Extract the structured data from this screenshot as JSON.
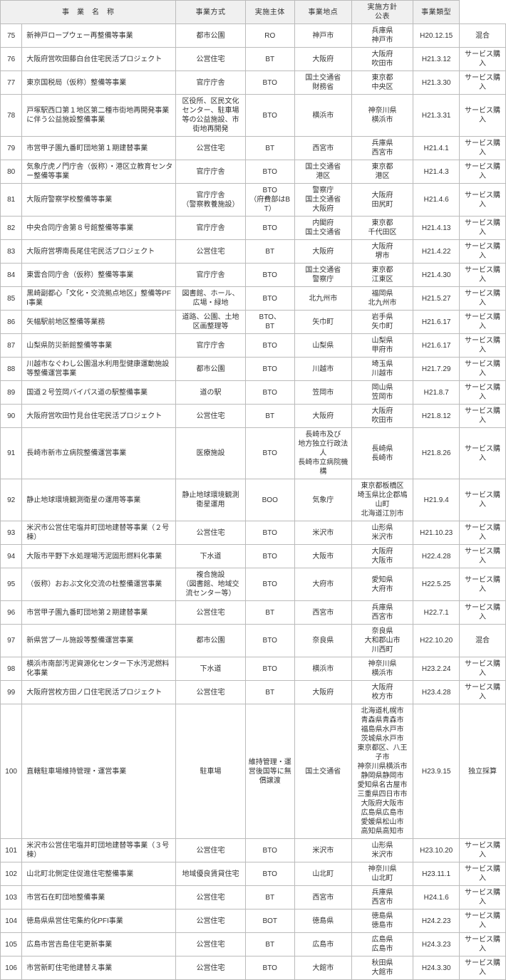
{
  "columns": [
    "",
    "事　業　名　称",
    "事業方式",
    "実施主体",
    "事業地点",
    "実施方針\n公表",
    "事業類型"
  ],
  "rows": [
    {
      "no": "75",
      "name": "新神戸ロープウェー再整備等事業",
      "m1": "都市公園",
      "m2": "RO",
      "m3": "神戸市",
      "m4": "兵庫県\n神戸市",
      "m5": "H20.12.15",
      "m6": "混合"
    },
    {
      "no": "76",
      "name": "大阪府営吹田藤白台住宅民活プロジェクト",
      "m1": "公営住宅",
      "m2": "BT",
      "m3": "大阪府",
      "m4": "大阪府\n吹田市",
      "m5": "H21.3.12",
      "m6": "サービス購入"
    },
    {
      "no": "77",
      "name": "東京国税局（仮称）整備等事業",
      "m1": "官庁庁舎",
      "m2": "BTO",
      "m3": "国土交通省\n財務省",
      "m4": "東京都\n中央区",
      "m5": "H21.3.30",
      "m6": "サービス購入"
    },
    {
      "no": "78",
      "name": "戸塚駅西口第１地区第二種市街地再開発事業に伴う公益施設整備事業",
      "m1": "区役所、区民文化センター、駐車場等の公益施設、市街地再開発",
      "m2": "BTO",
      "m3": "横浜市",
      "m4": "神奈川県\n横浜市",
      "m5": "H21.3.31",
      "m6": "サービス購入"
    },
    {
      "no": "79",
      "name": "市営甲子園九番町団地第１期建替事業",
      "m1": "公営住宅",
      "m2": "BT",
      "m3": "西宮市",
      "m4": "兵庫県\n西宮市",
      "m5": "H21.4.1",
      "m6": "サービス購入"
    },
    {
      "no": "80",
      "name": "気象庁虎ノ門庁舎（仮称）・港区立教育センター整備等事業",
      "m1": "官庁庁舎",
      "m2": "BTO",
      "m3": "国土交通省\n港区",
      "m4": "東京都\n港区",
      "m5": "H21.4.3",
      "m6": "サービス購入"
    },
    {
      "no": "81",
      "name": "大阪府警察学校整備等事業",
      "m1": "官庁庁舎\n（警察教養施設）",
      "m2": "BTO\n（府費部はBT）",
      "m3": "警察庁\n国土交通省\n大阪府",
      "m4": "大阪府\n田尻町",
      "m5": "H21.4.6",
      "m6": "サービス購入"
    },
    {
      "no": "82",
      "name": "中央合同庁舎第８号館整備等事業",
      "m1": "官庁庁舎",
      "m2": "BTO",
      "m3": "内閣府\n国土交通省",
      "m4": "東京都\n千代田区",
      "m5": "H21.4.13",
      "m6": "サービス購入"
    },
    {
      "no": "83",
      "name": "大阪府営堺南長尾住宅民活プロジェクト",
      "m1": "公営住宅",
      "m2": "BT",
      "m3": "大阪府",
      "m4": "大阪府\n堺市",
      "m5": "H21.4.22",
      "m6": "サービス購入"
    },
    {
      "no": "84",
      "name": "東雲合同庁舎（仮称）整備等事業",
      "m1": "官庁庁舎",
      "m2": "BTO",
      "m3": "国土交通省\n警察庁",
      "m4": "東京都\n江東区",
      "m5": "H21.4.30",
      "m6": "サービス購入"
    },
    {
      "no": "85",
      "name": "黒崎副都心「文化・交流拠点地区」整備等PFI事業",
      "m1": "図書館、ホール、\n広場・緑地",
      "m2": "BTO",
      "m3": "北九州市",
      "m4": "福岡県\n北九州市",
      "m5": "H21.5.27",
      "m6": "サービス購入"
    },
    {
      "no": "86",
      "name": "矢幅駅前地区整備等業務",
      "m1": "道路、公園、土地\n区画整理等",
      "m2": "BTO、\nBT",
      "m3": "矢巾町",
      "m4": "岩手県\n矢巾町",
      "m5": "H21.6.17",
      "m6": "サービス購入"
    },
    {
      "no": "87",
      "name": "山梨県防災新館整備等事業",
      "m1": "官庁庁舎",
      "m2": "BTO",
      "m3": "山梨県",
      "m4": "山梨県\n甲府市",
      "m5": "H21.6.17",
      "m6": "サービス購入"
    },
    {
      "no": "88",
      "name": "川越市なぐわし公園温水利用型健康運動施設等整備運営事業",
      "m1": "都市公園",
      "m2": "BTO",
      "m3": "川越市",
      "m4": "埼玉県\n川越市",
      "m5": "H21.7.29",
      "m6": "サービス購入"
    },
    {
      "no": "89",
      "name": "国道２号笠岡バイパス道の駅整備事業",
      "m1": "道の駅",
      "m2": "BTO",
      "m3": "笠岡市",
      "m4": "岡山県\n笠岡市",
      "m5": "H21.8.7",
      "m6": "サービス購入"
    },
    {
      "no": "90",
      "name": "大阪府営吹田竹見台住宅民活プロジェクト",
      "m1": "公営住宅",
      "m2": "BT",
      "m3": "大阪府",
      "m4": "大阪府\n吹田市",
      "m5": "H21.8.12",
      "m6": "サービス購入"
    },
    {
      "no": "91",
      "name": "長崎市新市立病院整備運営事業",
      "m1": "医療施設",
      "m2": "BTO",
      "m3": "長崎市及び\n地方独立行政法人\n長崎市立病院機構",
      "m4": "長崎県\n長崎市",
      "m5": "H21.8.26",
      "m6": "サービス購入"
    },
    {
      "no": "92",
      "name": "静止地球環境観測衛星の運用等事業",
      "m1": "静止地球環境観測\n衛星運用",
      "m2": "BOO",
      "m3": "気象庁",
      "m4": "東京都板橋区\n埼玉県比企郡鳩山町\n北海道江別市",
      "m5": "H21.9.4",
      "m6": "サービス購入"
    },
    {
      "no": "93",
      "name": "米沢市公営住宅塩井町団地建替等事業（２号棟）",
      "m1": "公営住宅",
      "m2": "BTO",
      "m3": "米沢市",
      "m4": "山形県\n米沢市",
      "m5": "H21.10.23",
      "m6": "サービス購入"
    },
    {
      "no": "94",
      "name": "大阪市平野下水処理場汚泥固形燃料化事業",
      "m1": "下水道",
      "m2": "BTO",
      "m3": "大阪市",
      "m4": "大阪府\n大阪市",
      "m5": "H22.4.28",
      "m6": "サービス購入"
    },
    {
      "no": "95",
      "name": "（仮称）おおぶ文化交流の杜整備運営事業",
      "m1": "複合施設\n（図書館、地域交流センター等）",
      "m2": "BTO",
      "m3": "大府市",
      "m4": "愛知県\n大府市",
      "m5": "H22.5.25",
      "m6": "サービス購入"
    },
    {
      "no": "96",
      "name": "市営甲子園九番町団地第２期建替事業",
      "m1": "公営住宅",
      "m2": "BT",
      "m3": "西宮市",
      "m4": "兵庫県\n西宮市",
      "m5": "H22.7.1",
      "m6": "サービス購入"
    },
    {
      "no": "97",
      "name": "新県営プール施設等整備運営事業",
      "m1": "都市公園",
      "m2": "BTO",
      "m3": "奈良県",
      "m4": "奈良県\n大和郡山市\n川西町",
      "m5": "H22.10.20",
      "m6": "混合"
    },
    {
      "no": "98",
      "name": "横浜市南部汚泥資源化センター下水汚泥燃料化事業",
      "m1": "下水道",
      "m2": "BTO",
      "m3": "横浜市",
      "m4": "神奈川県\n横浜市",
      "m5": "H23.2.24",
      "m6": "サービス購入"
    },
    {
      "no": "99",
      "name": "大阪府営枚方田ノ口住宅民活プロジェクト",
      "m1": "公営住宅",
      "m2": "BT",
      "m3": "大阪府",
      "m4": "大阪府\n枚方市",
      "m5": "H23.4.28",
      "m6": "サービス購入"
    },
    {
      "no": "100",
      "name": "直轄駐車場維持管理・運営事業",
      "m1": "駐車場",
      "m2": "維持管理・運営後国等に無償譲渡",
      "m3": "国土交通省",
      "m4": "北海道札幌市\n青森県青森市\n福島県水戸市\n茨城県水戸市\n東京都区、八王子市\n神奈川県横浜市\n静岡県静岡市\n愛知県名古屋市\n三重県四日市市\n大阪府大阪市\n広島県広島市\n愛媛県松山市\n高知県高知市",
      "m5": "H23.9.15",
      "m6": "独立採算"
    },
    {
      "no": "101",
      "name": "米沢市公営住宅塩井町団地建替等事業（３号棟）",
      "m1": "公営住宅",
      "m2": "BTO",
      "m3": "米沢市",
      "m4": "山形県\n米沢市",
      "m5": "H23.10.20",
      "m6": "サービス購入"
    },
    {
      "no": "102",
      "name": "山北町北側定住促進住宅整備事業",
      "m1": "地域優良賃貸住宅",
      "m2": "BTO",
      "m3": "山北町",
      "m4": "神奈川県\n山北町",
      "m5": "H23.11.1",
      "m6": "サービス購入"
    },
    {
      "no": "103",
      "name": "市営石在町団地整備事業",
      "m1": "公営住宅",
      "m2": "BT",
      "m3": "西宮市",
      "m4": "兵庫県\n西宮市",
      "m5": "H24.1.6",
      "m6": "サービス購入"
    },
    {
      "no": "104",
      "name": "徳島県県営住宅集約化PFI事業",
      "m1": "公営住宅",
      "m2": "BOT",
      "m3": "徳島県",
      "m4": "徳島県\n徳島市",
      "m5": "H24.2.23",
      "m6": "サービス購入"
    },
    {
      "no": "105",
      "name": "広島市営吉島住宅更新事業",
      "m1": "公営住宅",
      "m2": "BT",
      "m3": "広島市",
      "m4": "広島県\n広島市",
      "m5": "H24.3.23",
      "m6": "サービス購入"
    },
    {
      "no": "106",
      "name": "市営新町住宅他建替え事業",
      "m1": "公営住宅",
      "m2": "BTO",
      "m3": "大館市",
      "m4": "秋田県\n大館市",
      "m5": "H24.3.30",
      "m6": "サービス購入"
    }
  ]
}
